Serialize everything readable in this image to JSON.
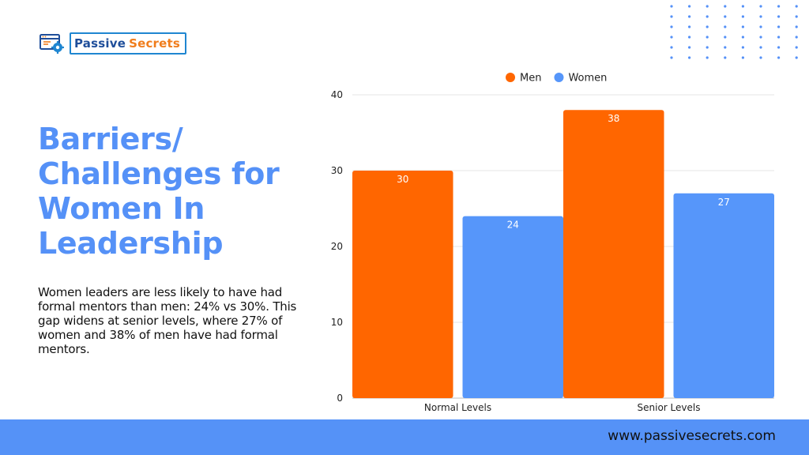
{
  "brand": {
    "name_part1": "Passive",
    "name_part2": "Secrets",
    "logo_icon": "browser-gear-icon",
    "colors": {
      "navy": "#1f4e9a",
      "orange": "#f07d1c",
      "blue": "#1f86d1"
    }
  },
  "title": "Barriers/ Challenges for Women In Leadership",
  "description": "Women leaders are less likely to have had formal mentors than men: 24% vs 30%. This gap widens at senior levels, where 27% of women and 38% of men have had formal mentors.",
  "footer": {
    "url": "www.passivesecrets.com",
    "color": "#5592f7"
  },
  "chart_data": {
    "type": "bar",
    "categories": [
      "Normal Levels",
      "Senior Levels"
    ],
    "series": [
      {
        "name": "Men",
        "values": [
          30,
          38
        ],
        "color": "#ff6600"
      },
      {
        "name": "Women",
        "values": [
          24,
          27
        ],
        "color": "#5696fa"
      }
    ],
    "yticks": [
      0,
      10,
      20,
      30,
      40
    ],
    "ylim": [
      0,
      40
    ],
    "grid": true,
    "legend_position": "top",
    "data_labels": true
  }
}
